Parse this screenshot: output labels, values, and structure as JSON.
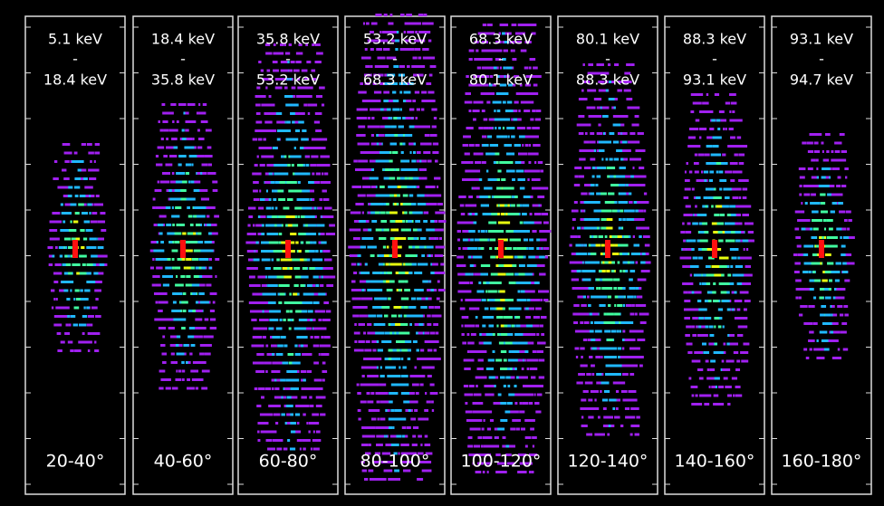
{
  "panels": [
    {
      "energy_from": "5.1 keV",
      "separator": "-",
      "energy_to": "18.4 keV",
      "angle": "20-40°"
    },
    {
      "energy_from": "18.4 keV",
      "separator": "-",
      "energy_to": "35.8 keV",
      "angle": "40-60°"
    },
    {
      "energy_from": "35.8 keV",
      "separator": "-",
      "energy_to": "53.2 keV",
      "angle": "60-80°"
    },
    {
      "energy_from": "53.2 keV",
      "separator": "-",
      "energy_to": "68.3 keV",
      "angle": "80-100°"
    },
    {
      "energy_from": "68.3 keV",
      "separator": "-",
      "energy_to": "80.1 keV",
      "angle": "100-120°"
    },
    {
      "energy_from": "80.1 keV",
      "separator": "-",
      "energy_to": "88.3 keV",
      "angle": "120-140°"
    },
    {
      "energy_from": "88.3 keV",
      "separator": "-",
      "energy_to": "93.1 keV",
      "angle": "140-160°"
    },
    {
      "energy_from": "93.1 keV",
      "separator": "-",
      "energy_to": "94.7 keV",
      "angle": "160-180°"
    }
  ]
}
